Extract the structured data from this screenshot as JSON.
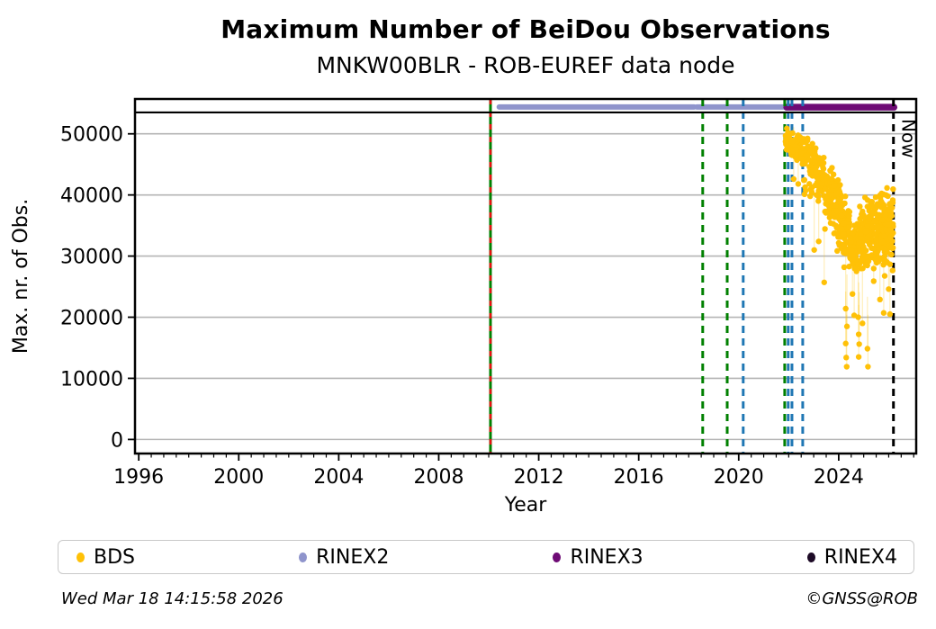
{
  "title": "Maximum Number of BeiDou Observations",
  "subtitle": "MNKW00BLR - ROB-EUREF data node",
  "footer": {
    "timestamp": "Wed Mar 18 14:15:58 2026",
    "credit": "©GNSS@ROB"
  },
  "legend": {
    "items": [
      {
        "label": "BDS",
        "color": "#ffc107"
      },
      {
        "label": "RINEX2",
        "color": "#8f94cc"
      },
      {
        "label": "RINEX3",
        "color": "#6e0b75"
      },
      {
        "label": "RINEX4",
        "color": "#1d0a26"
      }
    ]
  },
  "chart_data": {
    "type": "scatter",
    "title": "Maximum Number of BeiDou Observations",
    "subtitle": "MNKW00BLR - ROB-EUREF data node",
    "xlabel": "Year",
    "ylabel": "Max. nr. of Obs.",
    "xlim": [
      1995.85,
      2027.1
    ],
    "ylim": [
      -2300,
      55700
    ],
    "grid": "horizontal",
    "grid_color": "#b4b4b4",
    "x_major_ticks": [
      1996,
      2000,
      2004,
      2008,
      2012,
      2016,
      2020,
      2024
    ],
    "x_tick_labels": [
      "1996",
      "2000",
      "2004",
      "2008",
      "2012",
      "2016",
      "2020",
      "2024"
    ],
    "x_minor_step": 0.5,
    "y_major_ticks": [
      0,
      10000,
      20000,
      30000,
      40000,
      50000
    ],
    "y_tick_labels": [
      "0",
      "10000",
      "20000",
      "30000",
      "40000",
      "50000"
    ],
    "max_obs_line": {
      "value": 53500,
      "color": "#000000"
    },
    "rinex_bands": [
      {
        "name": "RINEX2",
        "color": "#8f94cc",
        "value": 54400,
        "thickness": 6,
        "segments": [
          [
            2010.42,
            2018.22
          ],
          [
            2018.32,
            2021.86
          ]
        ]
      },
      {
        "name": "RINEX3",
        "color": "#6e0b75",
        "value": 54350,
        "thickness": 7.5,
        "segments": [
          [
            2021.92,
            2026.21
          ]
        ]
      }
    ],
    "vlines": [
      {
        "x": 2010.07,
        "color": "#008000",
        "style": "solid",
        "overlay": {
          "color": "#e81010",
          "style": "dashed"
        }
      },
      {
        "x": 2018.56,
        "color": "#008000",
        "style": "dashed"
      },
      {
        "x": 2019.54,
        "color": "#008000",
        "style": "dashed"
      },
      {
        "x": 2020.18,
        "color": "#1f77b4",
        "style": "dashed"
      },
      {
        "x": 2021.84,
        "color": "#008000",
        "style": "dashed"
      },
      {
        "x": 2021.98,
        "color": "#1f77b4",
        "style": "dashed"
      },
      {
        "x": 2022.13,
        "color": "#1f77b4",
        "style": "dashed"
      },
      {
        "x": 2022.56,
        "color": "#1f77b4",
        "style": "dashed"
      },
      {
        "x": 2026.19,
        "color": "#000000",
        "style": "dashed",
        "label": "Now"
      }
    ],
    "series": [
      {
        "name": "BDS",
        "color": "#ffc107",
        "marker": "circle",
        "marker_radius": 3.2,
        "density_bands": [
          [
            2021.86,
            2022.1,
            46800,
            51000,
            40
          ],
          [
            2022.1,
            2022.5,
            45500,
            50600,
            62
          ],
          [
            2022.5,
            2022.8,
            44200,
            49800,
            50
          ],
          [
            2022.8,
            2023.1,
            42000,
            48800,
            52
          ],
          [
            2022.55,
            2023.2,
            39500,
            43500,
            12
          ],
          [
            2023.1,
            2023.45,
            38500,
            47000,
            55
          ],
          [
            2023.45,
            2023.8,
            34000,
            45000,
            60
          ],
          [
            2023.8,
            2024.1,
            30000,
            43000,
            62
          ],
          [
            2024.1,
            2024.45,
            27800,
            40500,
            62
          ],
          [
            2024.45,
            2024.78,
            26500,
            36500,
            68
          ],
          [
            2024.78,
            2025.05,
            27200,
            38500,
            58
          ],
          [
            2025.05,
            2025.35,
            27800,
            40200,
            58
          ],
          [
            2025.35,
            2025.7,
            26800,
            41500,
            66
          ],
          [
            2025.7,
            2026.0,
            26300,
            42500,
            72
          ],
          [
            2026.0,
            2026.18,
            27200,
            42000,
            42
          ]
        ],
        "outliers": [
          [
            2022.2,
            42600
          ],
          [
            2022.38,
            41800
          ],
          [
            2023.02,
            31000
          ],
          [
            2023.2,
            32400
          ],
          [
            2023.42,
            25700
          ],
          [
            2024.28,
            21400
          ],
          [
            2024.33,
            18500
          ],
          [
            2024.28,
            15700
          ],
          [
            2024.3,
            13400
          ],
          [
            2024.32,
            11900
          ],
          [
            2024.55,
            23800
          ],
          [
            2024.62,
            20300
          ],
          [
            2024.78,
            20000
          ],
          [
            2024.8,
            17200
          ],
          [
            2024.82,
            15600
          ],
          [
            2024.8,
            13500
          ],
          [
            2024.95,
            19000
          ],
          [
            2025.15,
            14850
          ],
          [
            2025.17,
            11900
          ],
          [
            2025.4,
            25900
          ],
          [
            2025.65,
            22900
          ],
          [
            2025.8,
            20700
          ],
          [
            2026.0,
            24600
          ],
          [
            2026.05,
            20500
          ]
        ]
      }
    ]
  }
}
